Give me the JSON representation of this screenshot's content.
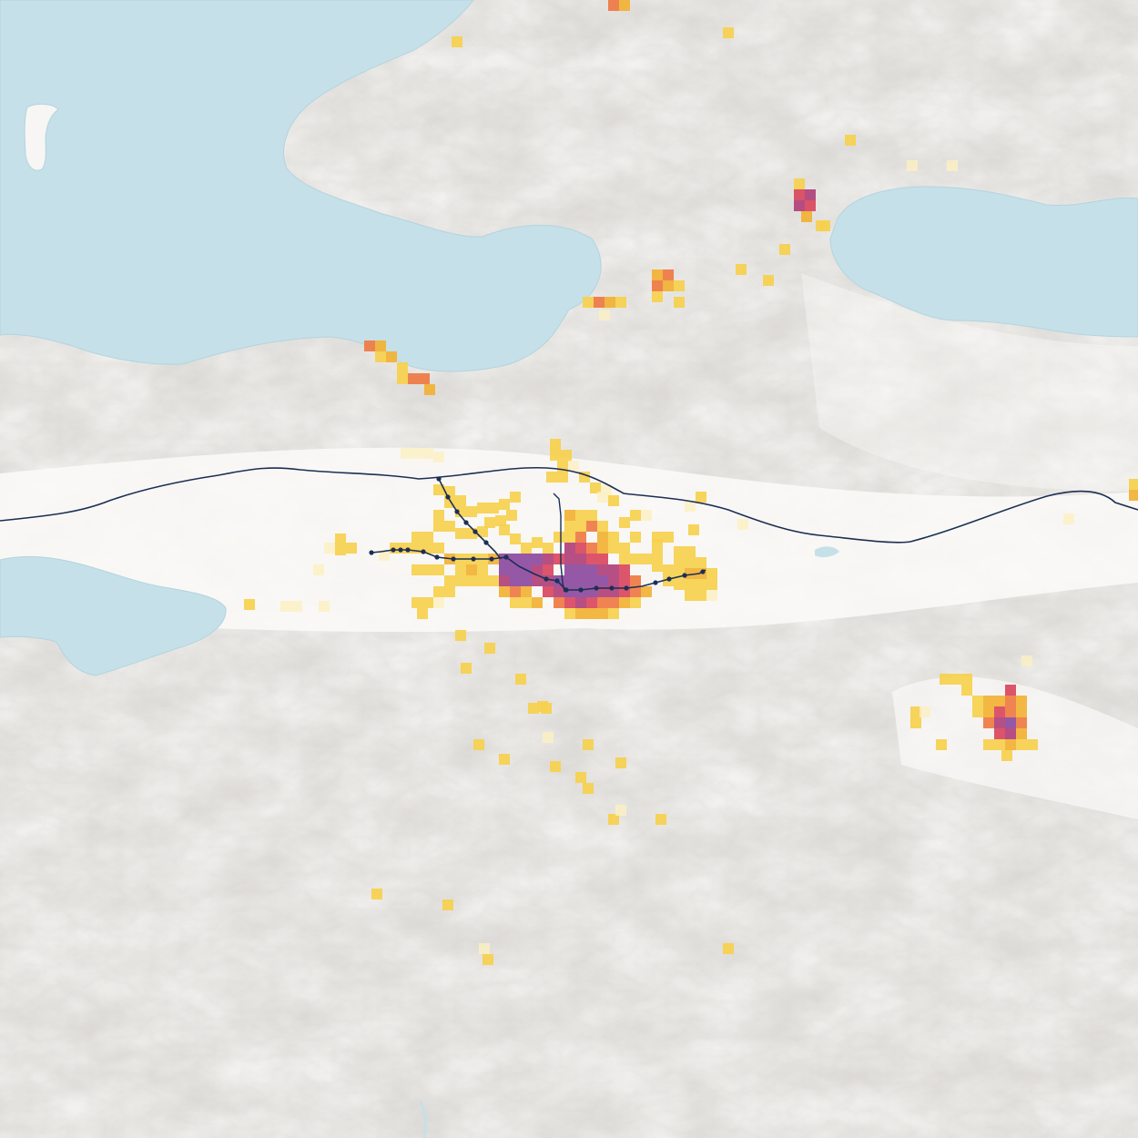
{
  "map": {
    "colors": {
      "land": "#f7f6f4",
      "land_shade": "#dcd9d4",
      "water": "#c5e0e8",
      "water_edge": "#b3d4de",
      "rail": "#1c2f54",
      "station": "#1c2f54"
    },
    "density_palette": [
      "#fbf0c2",
      "#f6d04d",
      "#f2b134",
      "#ee7a43",
      "#d9465e",
      "#b0407a",
      "#8c4a9e"
    ],
    "features": {
      "water_bodies": [
        "bay",
        "lake-northeast",
        "lake-west",
        "islet"
      ],
      "rail_lines": [
        "mainline",
        "metro-line"
      ],
      "population_grid": true,
      "terrain": "hillshade"
    }
  }
}
